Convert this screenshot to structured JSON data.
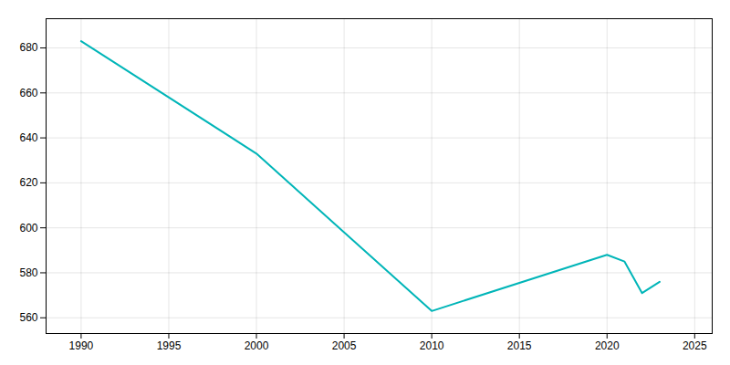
{
  "chart_data": {
    "type": "line",
    "x": [
      1990,
      2000,
      2010,
      2020,
      2021,
      2022,
      2023
    ],
    "values": [
      683,
      633,
      563,
      588,
      585,
      571,
      576
    ],
    "color": "#00b5b8",
    "xlim": [
      1988,
      2026
    ],
    "xticks": [
      1990,
      1995,
      2000,
      2005,
      2010,
      2015,
      2020,
      2025
    ],
    "ylim": [
      553,
      693
    ],
    "yticks": [
      560,
      580,
      600,
      620,
      640,
      660,
      680
    ],
    "grid": true
  }
}
